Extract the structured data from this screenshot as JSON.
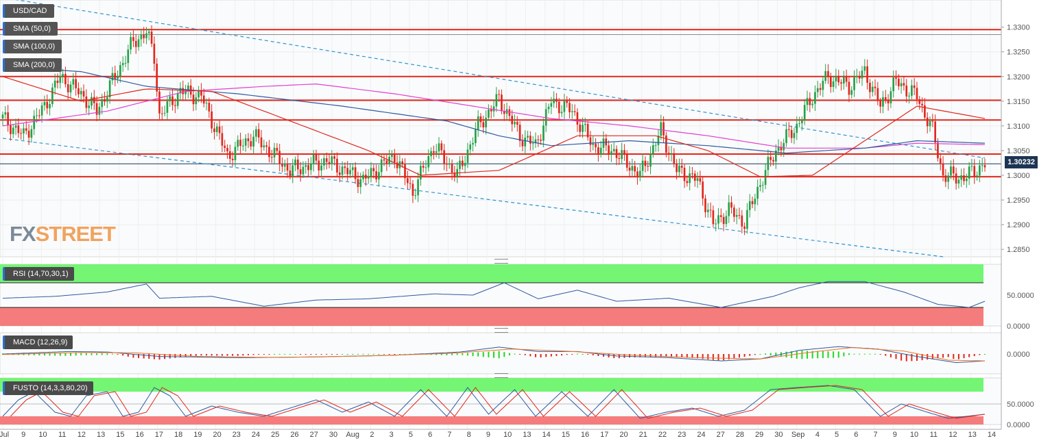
{
  "symbol": "USD/CAD",
  "overlays": [
    "SMA (50,0)",
    "SMA (100,0)",
    "SMA (200,0)"
  ],
  "indicators": {
    "rsi": "RSI (14,70,30,1)",
    "macd": "MACD (12,26,9)",
    "fusto": "FUSTO (14,3,3,80,20)"
  },
  "last_price": "1.30232",
  "logo": {
    "part1": "FX",
    "part2": "STREET"
  },
  "colors": {
    "up": "#24a148",
    "down": "#e0261c",
    "sma50": "#e0261c",
    "sma100": "#2c5aa0",
    "sma200": "#e040d0",
    "level": "#e0261c",
    "trend": "#2a93d5",
    "overbought": "#74f574",
    "oversold": "#f57c7c"
  },
  "chart_data": [
    {
      "type": "candlestick",
      "title": "USD/CAD",
      "ylim": [
        1.2835,
        1.3355
      ],
      "y_ticks": [
        "1.3300",
        "1.3250",
        "1.3200",
        "1.3150",
        "1.3100",
        "1.3050",
        "1.3000",
        "1.2950",
        "1.2900",
        "1.2850"
      ],
      "x_ticks": [
        "Jul",
        "9",
        "10",
        "11",
        "12",
        "13",
        "15",
        "16",
        "17",
        "18",
        "19",
        "20",
        "23",
        "24",
        "25",
        "26",
        "27",
        "30",
        "Aug",
        "2",
        "3",
        "5",
        "6",
        "7",
        "8",
        "9",
        "10",
        "13",
        "14",
        "15",
        "16",
        "17",
        "20",
        "21",
        "22",
        "23",
        "24",
        "27",
        "28",
        "29",
        "30",
        "Sep",
        "4",
        "5",
        "6",
        "7",
        "9",
        "10",
        "11",
        "12",
        "13",
        "14"
      ],
      "horizontal_levels": [
        1.3295,
        1.32,
        1.3152,
        1.3112,
        1.3043,
        1.2997
      ],
      "current_price": 1.30232,
      "close_path": [
        [
          0,
          1.3115
        ],
        [
          8,
          1.308
        ],
        [
          16,
          1.314
        ],
        [
          22,
          1.32
        ],
        [
          30,
          1.3165
        ],
        [
          36,
          1.313
        ],
        [
          42,
          1.319
        ],
        [
          50,
          1.327
        ],
        [
          55,
          1.329
        ],
        [
          58,
          1.324
        ],
        [
          60,
          1.312
        ],
        [
          68,
          1.317
        ],
        [
          76,
          1.316
        ],
        [
          86,
          1.304
        ],
        [
          96,
          1.308
        ],
        [
          110,
          1.301
        ],
        [
          124,
          1.303
        ],
        [
          138,
          1.299
        ],
        [
          150,
          1.304
        ],
        [
          157,
          1.2965
        ],
        [
          165,
          1.306
        ],
        [
          174,
          1.3
        ],
        [
          182,
          1.31
        ],
        [
          190,
          1.3155
        ],
        [
          198,
          1.308
        ],
        [
          204,
          1.306
        ],
        [
          210,
          1.315
        ],
        [
          218,
          1.313
        ],
        [
          226,
          1.306
        ],
        [
          234,
          1.305
        ],
        [
          244,
          1.3
        ],
        [
          252,
          1.309
        ],
        [
          258,
          1.301
        ],
        [
          266,
          1.299
        ],
        [
          272,
          1.29
        ],
        [
          278,
          1.293
        ],
        [
          284,
          1.2905
        ],
        [
          290,
          1.2985
        ],
        [
          296,
          1.305
        ],
        [
          304,
          1.31
        ],
        [
          310,
          1.316
        ],
        [
          316,
          1.32
        ],
        [
          324,
          1.318
        ],
        [
          330,
          1.321
        ],
        [
          336,
          1.314
        ],
        [
          342,
          1.319
        ],
        [
          350,
          1.316
        ],
        [
          356,
          1.309
        ],
        [
          360,
          1.3
        ],
        [
          368,
          1.2995
        ],
        [
          376,
          1.3023
        ]
      ],
      "sma50": [
        [
          0,
          1.32
        ],
        [
          30,
          1.315
        ],
        [
          55,
          1.3175
        ],
        [
          80,
          1.317
        ],
        [
          110,
          1.311
        ],
        [
          140,
          1.305
        ],
        [
          160,
          1.3
        ],
        [
          190,
          1.301
        ],
        [
          220,
          1.308
        ],
        [
          250,
          1.308
        ],
        [
          270,
          1.305
        ],
        [
          290,
          1.2997
        ],
        [
          310,
          1.3
        ],
        [
          330,
          1.307
        ],
        [
          350,
          1.314
        ],
        [
          376,
          1.3115
        ]
      ],
      "sma100": [
        [
          0,
          1.322
        ],
        [
          30,
          1.321
        ],
        [
          55,
          1.318
        ],
        [
          90,
          1.3165
        ],
        [
          130,
          1.314
        ],
        [
          170,
          1.311
        ],
        [
          190,
          1.308
        ],
        [
          210,
          1.306
        ],
        [
          240,
          1.307
        ],
        [
          270,
          1.306
        ],
        [
          300,
          1.3045
        ],
        [
          330,
          1.3055
        ],
        [
          350,
          1.307
        ],
        [
          376,
          1.3065
        ]
      ],
      "sma200": [
        [
          0,
          1.31
        ],
        [
          40,
          1.313
        ],
        [
          70,
          1.317
        ],
        [
          100,
          1.318
        ],
        [
          120,
          1.3185
        ],
        [
          150,
          1.3165
        ],
        [
          180,
          1.314
        ],
        [
          210,
          1.3115
        ],
        [
          240,
          1.31
        ],
        [
          270,
          1.308
        ],
        [
          300,
          1.3055
        ],
        [
          330,
          1.3055
        ],
        [
          350,
          1.3065
        ],
        [
          376,
          1.3062
        ]
      ],
      "trendlines": [
        {
          "x1": 0,
          "y1": 1.336,
          "x2": 376,
          "y2": 1.3035
        },
        {
          "x1": 0,
          "y1": 1.3075,
          "x2": 360,
          "y2": 1.2835
        }
      ]
    },
    {
      "type": "line",
      "title": "RSI (14,70,30,1)",
      "ylim": [
        0,
        100
      ],
      "y_ticks": [
        "50.0000",
        "0.0000"
      ],
      "overbought": 70,
      "oversold": 30,
      "values": [
        [
          0,
          45
        ],
        [
          20,
          48
        ],
        [
          40,
          55
        ],
        [
          55,
          68
        ],
        [
          60,
          45
        ],
        [
          80,
          48
        ],
        [
          100,
          32
        ],
        [
          120,
          42
        ],
        [
          140,
          44
        ],
        [
          165,
          52
        ],
        [
          180,
          50
        ],
        [
          192,
          70
        ],
        [
          205,
          44
        ],
        [
          220,
          58
        ],
        [
          235,
          40
        ],
        [
          255,
          45
        ],
        [
          275,
          30
        ],
        [
          295,
          48
        ],
        [
          305,
          62
        ],
        [
          316,
          72
        ],
        [
          330,
          72
        ],
        [
          345,
          55
        ],
        [
          358,
          35
        ],
        [
          370,
          30
        ],
        [
          376,
          40
        ]
      ]
    },
    {
      "type": "bar",
      "title": "MACD (12,26,9)",
      "y_ticks": [
        "0.0000"
      ],
      "macd": [
        [
          0,
          0.0
        ],
        [
          25,
          0.001
        ],
        [
          40,
          0.0008
        ],
        [
          60,
          -0.001
        ],
        [
          90,
          -0.0015
        ],
        [
          120,
          -0.0012
        ],
        [
          150,
          -0.0005
        ],
        [
          175,
          0.0008
        ],
        [
          190,
          0.0028
        ],
        [
          205,
          0.001
        ],
        [
          220,
          0.001
        ],
        [
          235,
          -0.0008
        ],
        [
          255,
          -0.0015
        ],
        [
          275,
          -0.0028
        ],
        [
          290,
          -0.002
        ],
        [
          305,
          0.0015
        ],
        [
          320,
          0.003
        ],
        [
          335,
          0.002
        ],
        [
          350,
          -0.001
        ],
        [
          365,
          -0.0035
        ],
        [
          376,
          -0.0028
        ]
      ],
      "signal": [
        [
          0,
          -0.0002
        ],
        [
          30,
          0.0006
        ],
        [
          50,
          0.0005
        ],
        [
          75,
          -0.001
        ],
        [
          105,
          -0.0014
        ],
        [
          140,
          -0.0008
        ],
        [
          170,
          0.0002
        ],
        [
          195,
          0.002
        ],
        [
          215,
          0.0012
        ],
        [
          240,
          -0.0004
        ],
        [
          265,
          -0.0015
        ],
        [
          290,
          -0.002
        ],
        [
          310,
          0.0008
        ],
        [
          325,
          0.0026
        ],
        [
          345,
          0.0012
        ],
        [
          362,
          -0.0025
        ],
        [
          376,
          -0.0028
        ]
      ]
    },
    {
      "type": "line",
      "title": "FUSTO (14,3,3,80,20)",
      "ylim": [
        0,
        100
      ],
      "y_ticks": [
        "50.0000",
        "0.0000"
      ],
      "overbought": 80,
      "oversold": 20,
      "k": [
        [
          0,
          20
        ],
        [
          6,
          60
        ],
        [
          12,
          80
        ],
        [
          20,
          30
        ],
        [
          26,
          20
        ],
        [
          32,
          70
        ],
        [
          40,
          80
        ],
        [
          46,
          20
        ],
        [
          52,
          30
        ],
        [
          58,
          90
        ],
        [
          64,
          70
        ],
        [
          70,
          20
        ],
        [
          80,
          45
        ],
        [
          90,
          30
        ],
        [
          100,
          20
        ],
        [
          110,
          40
        ],
        [
          120,
          60
        ],
        [
          130,
          30
        ],
        [
          140,
          55
        ],
        [
          150,
          20
        ],
        [
          160,
          85
        ],
        [
          170,
          20
        ],
        [
          178,
          90
        ],
        [
          186,
          25
        ],
        [
          196,
          85
        ],
        [
          204,
          20
        ],
        [
          214,
          80
        ],
        [
          224,
          20
        ],
        [
          234,
          85
        ],
        [
          244,
          15
        ],
        [
          254,
          30
        ],
        [
          264,
          40
        ],
        [
          274,
          20
        ],
        [
          284,
          35
        ],
        [
          294,
          85
        ],
        [
          304,
          90
        ],
        [
          316,
          95
        ],
        [
          326,
          85
        ],
        [
          336,
          20
        ],
        [
          344,
          50
        ],
        [
          354,
          30
        ],
        [
          362,
          15
        ],
        [
          376,
          25
        ]
      ]
    }
  ]
}
